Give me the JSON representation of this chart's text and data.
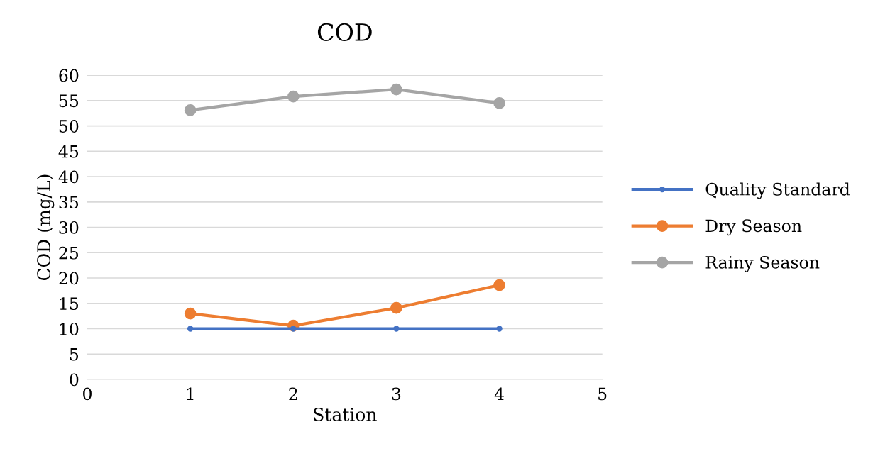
{
  "chart_data": {
    "type": "line",
    "title": "COD",
    "xlabel": "Station",
    "ylabel": "COD (mg/L)",
    "x": [
      1,
      2,
      3,
      4
    ],
    "series": [
      {
        "name": "Quality Standard",
        "color": "#4472c4",
        "values": [
          10,
          10,
          10,
          10
        ]
      },
      {
        "name": "Dry Season",
        "color": "#ed7d31",
        "values": [
          13.0,
          10.6,
          14.1,
          18.6
        ]
      },
      {
        "name": "Rainy Season",
        "color": "#a5a5a5",
        "values": [
          53.1,
          55.8,
          57.2,
          54.5
        ]
      }
    ],
    "xlim": [
      0,
      5
    ],
    "xticks": [
      0,
      1,
      2,
      3,
      4,
      5
    ],
    "ylim": [
      0,
      60
    ],
    "yticks": [
      0,
      5,
      10,
      15,
      20,
      25,
      30,
      35,
      40,
      45,
      50,
      55,
      60
    ],
    "grid": "y",
    "legend": "right",
    "marker": "circle",
    "line_style": "solid"
  }
}
